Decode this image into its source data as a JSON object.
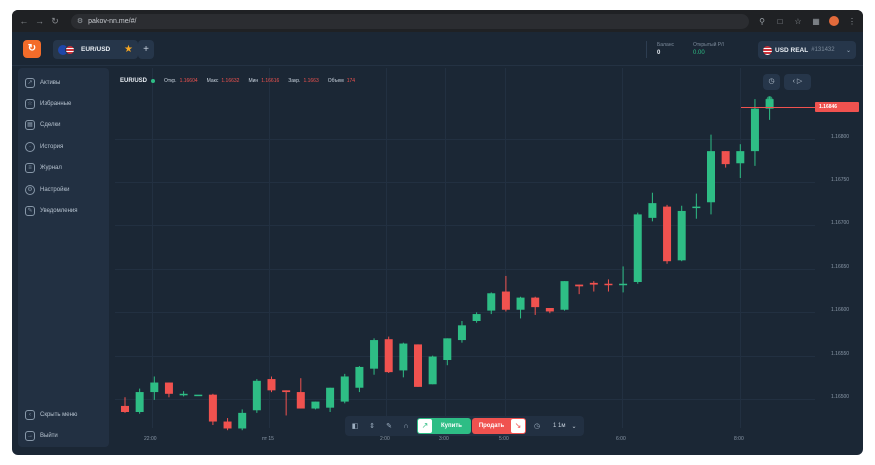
{
  "browser": {
    "url": "pakov-nn.me/#/",
    "icons": [
      "back-icon",
      "forward-icon",
      "reload-icon",
      "site-info-icon",
      "key-icon",
      "share-icon",
      "bookmark-star-icon",
      "extensions-icon",
      "profile-avatar",
      "more-icon"
    ]
  },
  "header": {
    "asset": "EUR/USD",
    "add_tab": "+",
    "balance_label": "Баланс",
    "balance_value": "0",
    "pnl_label": "Открытый P/I",
    "pnl_value": "0.00",
    "account_currency": "USD REAL",
    "account_id": "#131432"
  },
  "sidebar": {
    "items": [
      {
        "label": "Активы",
        "icon": "assets-icon"
      },
      {
        "label": "Избранные",
        "icon": "favorites-icon"
      },
      {
        "label": "Сделки",
        "icon": "trades-icon"
      },
      {
        "label": "История",
        "icon": "history-icon"
      },
      {
        "label": "Журнал",
        "icon": "journal-icon"
      },
      {
        "label": "Настройки",
        "icon": "settings-icon"
      },
      {
        "label": "Уведомления",
        "icon": "notifications-icon"
      }
    ],
    "bottom": [
      {
        "label": "Скрыть меню",
        "icon": "collapse-menu-icon"
      },
      {
        "label": "Выйти",
        "icon": "logout-icon"
      }
    ]
  },
  "chart": {
    "symbol": "EUR/USD",
    "ohlc": [
      {
        "label": "Откр.",
        "value": "1.16604"
      },
      {
        "label": "Макс",
        "value": "1.16632"
      },
      {
        "label": "Мин",
        "value": "1.16616"
      },
      {
        "label": "Закр.",
        "value": "1.1663"
      },
      {
        "label": "Объем",
        "value": "174"
      }
    ],
    "current_price": "1.16846",
    "colors": {
      "up": "#2ebd85",
      "down": "#f0524f"
    }
  },
  "chart_data": {
    "type": "candlestick",
    "y_ticks": [
      "1.16800",
      "1.16750",
      "1.16700",
      "1.16650",
      "1.16600",
      "1.16550",
      "1.16500"
    ],
    "x_ticks": [
      "22:00",
      "пт 15",
      "2:00",
      "3:00",
      "5:00",
      "6:00",
      "8:00"
    ],
    "candles": [
      {
        "o": 1.16492,
        "h": 1.16502,
        "l": 1.16484,
        "c": 1.16485
      },
      {
        "o": 1.16485,
        "h": 1.16512,
        "l": 1.16483,
        "c": 1.16508
      },
      {
        "o": 1.16508,
        "h": 1.16526,
        "l": 1.16499,
        "c": 1.16519
      },
      {
        "o": 1.16519,
        "h": 1.16519,
        "l": 1.16502,
        "c": 1.16506
      },
      {
        "o": 1.16506,
        "h": 1.16509,
        "l": 1.16503,
        "c": 1.16506
      },
      {
        "o": 1.16505,
        "h": 1.16505,
        "l": 1.16505,
        "c": 1.16505
      },
      {
        "o": 1.16505,
        "h": 1.16506,
        "l": 1.1647,
        "c": 1.16474
      },
      {
        "o": 1.16474,
        "h": 1.16478,
        "l": 1.16464,
        "c": 1.16466
      },
      {
        "o": 1.16466,
        "h": 1.16488,
        "l": 1.16464,
        "c": 1.16484
      },
      {
        "o": 1.16487,
        "h": 1.16523,
        "l": 1.16484,
        "c": 1.16521
      },
      {
        "o": 1.16523,
        "h": 1.16526,
        "l": 1.16508,
        "c": 1.1651
      },
      {
        "o": 1.1651,
        "h": 1.1651,
        "l": 1.16481,
        "c": 1.16508
      },
      {
        "o": 1.16508,
        "h": 1.16524,
        "l": 1.16489,
        "c": 1.16489
      },
      {
        "o": 1.16489,
        "h": 1.16497,
        "l": 1.16488,
        "c": 1.16497
      },
      {
        "o": 1.1649,
        "h": 1.16513,
        "l": 1.16485,
        "c": 1.16513
      },
      {
        "o": 1.16497,
        "h": 1.16529,
        "l": 1.16495,
        "c": 1.16526
      },
      {
        "o": 1.16513,
        "h": 1.16538,
        "l": 1.16508,
        "c": 1.16537
      },
      {
        "o": 1.16535,
        "h": 1.1657,
        "l": 1.16528,
        "c": 1.16568
      },
      {
        "o": 1.16569,
        "h": 1.16572,
        "l": 1.1653,
        "c": 1.16531
      },
      {
        "o": 1.16533,
        "h": 1.16565,
        "l": 1.16525,
        "c": 1.16564
      },
      {
        "o": 1.16563,
        "h": 1.16563,
        "l": 1.16514,
        "c": 1.16514
      },
      {
        "o": 1.16517,
        "h": 1.1655,
        "l": 1.16517,
        "c": 1.16549
      },
      {
        "o": 1.16545,
        "h": 1.1657,
        "l": 1.16539,
        "c": 1.1657
      },
      {
        "o": 1.16568,
        "h": 1.1659,
        "l": 1.16565,
        "c": 1.16585
      },
      {
        "o": 1.1659,
        "h": 1.166,
        "l": 1.16588,
        "c": 1.16598
      },
      {
        "o": 1.16602,
        "h": 1.16623,
        "l": 1.16598,
        "c": 1.16622
      },
      {
        "o": 1.16624,
        "h": 1.16642,
        "l": 1.16601,
        "c": 1.16603
      },
      {
        "o": 1.16603,
        "h": 1.16618,
        "l": 1.16593,
        "c": 1.16617
      },
      {
        "o": 1.16617,
        "h": 1.16618,
        "l": 1.16597,
        "c": 1.16606
      },
      {
        "o": 1.16605,
        "h": 1.16605,
        "l": 1.16599,
        "c": 1.16601
      },
      {
        "o": 1.16603,
        "h": 1.16636,
        "l": 1.16602,
        "c": 1.16636
      },
      {
        "o": 1.16632,
        "h": 1.16632,
        "l": 1.16621,
        "c": 1.1663
      },
      {
        "o": 1.16634,
        "h": 1.16636,
        "l": 1.16624,
        "c": 1.16632
      },
      {
        "o": 1.16633,
        "h": 1.16638,
        "l": 1.16624,
        "c": 1.16632
      },
      {
        "o": 1.16632,
        "h": 1.16653,
        "l": 1.16623,
        "c": 1.16633
      },
      {
        "o": 1.16635,
        "h": 1.16715,
        "l": 1.16633,
        "c": 1.16713
      },
      {
        "o": 1.16709,
        "h": 1.16738,
        "l": 1.16705,
        "c": 1.16726
      },
      {
        "o": 1.16722,
        "h": 1.16724,
        "l": 1.16656,
        "c": 1.16659
      },
      {
        "o": 1.1666,
        "h": 1.16723,
        "l": 1.16659,
        "c": 1.16717
      },
      {
        "o": 1.16722,
        "h": 1.16737,
        "l": 1.16708,
        "c": 1.16722
      },
      {
        "o": 1.16727,
        "h": 1.16805,
        "l": 1.16713,
        "c": 1.16786
      },
      {
        "o": 1.16786,
        "h": 1.16786,
        "l": 1.16767,
        "c": 1.16771
      },
      {
        "o": 1.16772,
        "h": 1.16794,
        "l": 1.16755,
        "c": 1.16786
      },
      {
        "o": 1.16786,
        "h": 1.16846,
        "l": 1.16769,
        "c": 1.16835
      },
      {
        "o": 1.16835,
        "h": 1.16849,
        "l": 1.16822,
        "c": 1.16846
      }
    ]
  },
  "trade": {
    "buy_label": "Купить",
    "sell_label": "Продать",
    "timeframe": "1 1м"
  }
}
